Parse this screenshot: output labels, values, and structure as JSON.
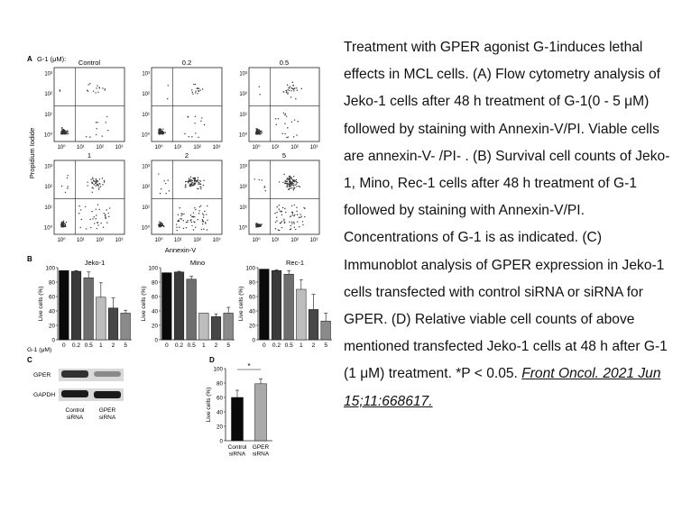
{
  "colors": {
    "bar_shades": [
      "#0a0a0a",
      "#3a3a3a",
      "#6e6e6e",
      "#bdbdbd",
      "#474747",
      "#8a8a8a"
    ],
    "dot": "#333333",
    "axis": "#222222"
  },
  "panel_a": {
    "label": "A",
    "conc_label": "G-1 (μM):",
    "plots": [
      "Control",
      "0.2",
      "0.5",
      "1",
      "2",
      "5"
    ],
    "y_axis_label": "Propidium Iodide",
    "x_axis_label": "Annexin-V",
    "ticks": [
      "10⁰",
      "10¹",
      "10²",
      "10³"
    ]
  },
  "panel_b": {
    "label": "B",
    "x_row_label": "G-1 (μM)",
    "y_ticks": [
      "0",
      "20",
      "40",
      "60",
      "80",
      "100"
    ],
    "y_axis_label": "Live cells (%)"
  },
  "panel_c": {
    "label": "C",
    "rows": [
      "GPER",
      "GAPDH"
    ],
    "lanes": [
      [
        "Control",
        "siRNA"
      ],
      [
        "GPER",
        "siRNA"
      ]
    ]
  },
  "panel_d": {
    "label": "D",
    "y_ticks": [
      "0",
      "20",
      "40",
      "60",
      "80",
      "100"
    ],
    "y_axis_label": "Live cells (%)",
    "significance": "*"
  },
  "chart_data": [
    {
      "type": "bar",
      "title": "Jeko-1",
      "ylabel": "Live cells (%)",
      "xlabel": "G-1 (μM)",
      "ylim": [
        0,
        100
      ],
      "categories": [
        "0",
        "0.2",
        "0.5",
        "1",
        "2",
        "5"
      ],
      "values": [
        96,
        95,
        86,
        59,
        44,
        37
      ],
      "errors": [
        0,
        1,
        8,
        20,
        14,
        4
      ]
    },
    {
      "type": "bar",
      "title": "Mino",
      "ylabel": "Live cells (%)",
      "xlabel": "G-1 (μM)",
      "ylim": [
        0,
        100
      ],
      "categories": [
        "0",
        "0.2",
        "0.5",
        "1",
        "2",
        "5"
      ],
      "values": [
        93,
        94,
        84,
        37,
        32,
        37
      ],
      "errors": [
        0,
        1,
        4,
        0,
        4,
        8
      ]
    },
    {
      "type": "bar",
      "title": "Rec-1",
      "ylabel": "Live cells (%)",
      "xlabel": "G-1 (μM)",
      "ylim": [
        0,
        100
      ],
      "categories": [
        "0",
        "0.2",
        "0.5",
        "1",
        "2",
        "5"
      ],
      "values": [
        98,
        96,
        91,
        70,
        42,
        26
      ],
      "errors": [
        0,
        1,
        5,
        13,
        21,
        11
      ]
    },
    {
      "type": "bar",
      "ylabel": "Live cells (%)",
      "ylim": [
        0,
        100
      ],
      "categories": [
        "Control siRNA",
        "GPER siRNA"
      ],
      "values": [
        60,
        79
      ],
      "errors": [
        10,
        7
      ]
    }
  ],
  "caption": {
    "body": "Treatment with GPER agonist G-1induces lethal effects in MCL cells. (A) Flow cytometry analysis of Jeko-1 cells after 48 h treatment of G-1(0 - 5 μM) followed by staining with Annexin-V/PI. Viable cells are annexin-V- /PI- . (B) Survival cell counts of Jeko-1, Mino, Rec-1 cells after 48 h treatment of G-1 followed by staining with Annexin-V/PI. Concentrations of G-1 is as indicated. (C) Immunoblot analysis of GPER expression in Jeko-1 cells transfected with control siRNA or siRNA for GPER. (D) Relative viable cell counts of above mentioned transfected Jeko-1 cells at 48 h after G-1 (1 μM) treatment. *P < 0.05.",
    "citation": "Front Oncol. 2021 Jun 15;11:668617."
  }
}
